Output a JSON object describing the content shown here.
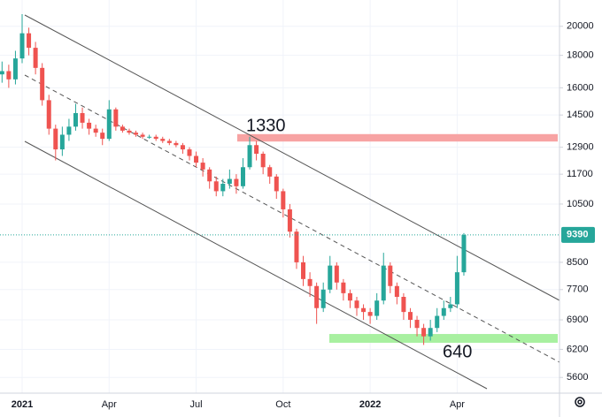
{
  "chart_data": {
    "type": "candlestick",
    "log_scale": true,
    "grid": true,
    "up_color": "#26a69a",
    "down_color": "#ef5350",
    "categories": [
      null,
      null,
      null,
      "2021",
      null,
      null,
      null,
      null,
      null,
      null,
      null,
      null,
      null,
      null,
      null,
      null,
      "Apr",
      null,
      null,
      null,
      null,
      null,
      null,
      null,
      null,
      null,
      null,
      null,
      null,
      "Jul",
      null,
      null,
      null,
      null,
      null,
      null,
      null,
      null,
      null,
      null,
      null,
      null,
      "Oct",
      null,
      null,
      null,
      null,
      null,
      null,
      null,
      null,
      null,
      null,
      null,
      null,
      "2022",
      null,
      null,
      null,
      null,
      null,
      null,
      null,
      null,
      null,
      null,
      null,
      null,
      "Apr",
      null
    ],
    "open": [
      16800,
      17000,
      16500,
      17800,
      19500,
      18500,
      17200,
      15300,
      13800,
      12800,
      13500,
      13900,
      14600,
      14100,
      13800,
      13600,
      13300,
      14800,
      13900,
      13700,
      13600,
      13500,
      13400,
      13400,
      13300,
      13200,
      13100,
      13000,
      12800,
      12500,
      12200,
      11900,
      11400,
      11000,
      11300,
      11500,
      11200,
      12000,
      13000,
      12600,
      12000,
      11600,
      11000,
      10300,
      9500,
      8500,
      8000,
      7800,
      7200,
      7700,
      8400,
      7900,
      7600,
      7400,
      7200,
      7100,
      7000,
      7400,
      8400,
      7800,
      7500,
      7100,
      6900,
      6700,
      6500,
      6700,
      7000,
      7200,
      7300,
      8200
    ],
    "high": [
      17600,
      17400,
      18300,
      20900,
      19900,
      18900,
      17500,
      15600,
      14000,
      13900,
      14300,
      15100,
      14900,
      14300,
      14000,
      13800,
      15300,
      14900,
      14000,
      13800,
      13700,
      13600,
      13500,
      13500,
      13400,
      13300,
      13200,
      13100,
      12900,
      12700,
      12400,
      12000,
      11600,
      11500,
      11900,
      11700,
      12400,
      13400,
      13200,
      12700,
      12100,
      11700,
      11100,
      10500,
      9600,
      8700,
      8200,
      7900,
      7900,
      8700,
      8500,
      8000,
      7700,
      7500,
      7300,
      7200,
      7600,
      8800,
      8500,
      7900,
      7600,
      7200,
      7000,
      6800,
      6900,
      7200,
      7400,
      7500,
      8700,
      9450
    ],
    "low": [
      16300,
      16000,
      16200,
      17500,
      18000,
      16800,
      15000,
      13500,
      12300,
      12500,
      13200,
      13700,
      13800,
      13500,
      13400,
      13000,
      13200,
      13700,
      13600,
      13500,
      13400,
      13300,
      13300,
      13200,
      13100,
      13000,
      12900,
      12600,
      12300,
      12000,
      11600,
      11100,
      10800,
      10800,
      11100,
      10900,
      11100,
      11900,
      12300,
      11700,
      11300,
      10700,
      10000,
      9300,
      8300,
      7800,
      7500,
      6800,
      7100,
      7600,
      7700,
      7400,
      7200,
      7000,
      6900,
      6800,
      6900,
      7300,
      7600,
      7300,
      6900,
      6700,
      6500,
      6300,
      6400,
      6600,
      6900,
      7100,
      7200,
      8100
    ],
    "close": [
      17000,
      16500,
      17800,
      19500,
      18500,
      17200,
      15300,
      13800,
      12800,
      13500,
      13900,
      14600,
      14100,
      13800,
      13600,
      13300,
      14800,
      13900,
      13700,
      13600,
      13500,
      13400,
      13400,
      13300,
      13200,
      13100,
      13000,
      12800,
      12500,
      12200,
      11900,
      11400,
      11000,
      11300,
      11500,
      11200,
      12000,
      13000,
      12600,
      12000,
      11600,
      11000,
      10300,
      9500,
      8500,
      8000,
      7800,
      7200,
      7700,
      8400,
      7900,
      7600,
      7400,
      7200,
      7100,
      7000,
      7400,
      8400,
      7800,
      7500,
      7100,
      6900,
      6700,
      6500,
      6700,
      7000,
      7200,
      7300,
      8200,
      9390
    ],
    "ylim": [
      5290,
      22000
    ],
    "yticks": [
      5600,
      6200,
      6900,
      7700,
      8500,
      10500,
      11700,
      12900,
      14500,
      16000,
      18000,
      20000
    ],
    "last_price": 9390,
    "zones": [
      {
        "label": "1330",
        "low": 13170,
        "high": 13530,
        "color": "#f7a3a3"
      },
      {
        "label": "640",
        "low": 6350,
        "high": 6555,
        "color": "#a8f0a0"
      }
    ]
  }
}
